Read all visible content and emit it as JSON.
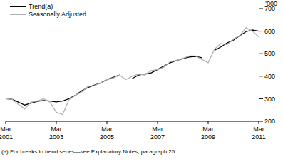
{
  "chart_data": {
    "type": "line",
    "categories": [
      "Mar 2001",
      null,
      null,
      null,
      null,
      null,
      null,
      null,
      "Mar 2003",
      null,
      null,
      null,
      null,
      null,
      null,
      null,
      "Mar 2005",
      null,
      null,
      null,
      null,
      null,
      null,
      null,
      "Mar 2007",
      null,
      null,
      null,
      null,
      null,
      null,
      null,
      "Mar 2009",
      null,
      null,
      null,
      null,
      null,
      null,
      null,
      "Mar 2011"
    ],
    "series": [
      {
        "name": "Trend(a)",
        "color": "#000000",
        "values": [
          300,
          298,
          285,
          272,
          280,
          288,
          292,
          290,
          286,
          290,
          300,
          315,
          335,
          350,
          360,
          370,
          385,
          395,
          405,
          null,
          390,
          405,
          410,
          415,
          430,
          445,
          460,
          470,
          478,
          485,
          488,
          482,
          null,
          515,
          530,
          548,
          560,
          580,
          598,
          605,
          600
        ]
      },
      {
        "name": "Seasonally Adjusted",
        "color": "#b0b0b0",
        "values": [
          300,
          298,
          275,
          255,
          285,
          290,
          300,
          285,
          240,
          230,
          295,
          315,
          330,
          355,
          358,
          370,
          385,
          392,
          405,
          385,
          400,
          410,
          405,
          425,
          430,
          440,
          465,
          470,
          480,
          490,
          490,
          475,
          460,
          520,
          545,
          540,
          565,
          580,
          615,
          600,
          575
        ]
      }
    ],
    "ylim": [
      200,
      700
    ],
    "yticks": [
      200,
      300,
      400,
      500,
      600,
      700
    ],
    "y_label": "'000",
    "legend": "top-left",
    "footnote": "(a) For breaks in trend series—see Explanatory Notes, paragraph 25."
  }
}
